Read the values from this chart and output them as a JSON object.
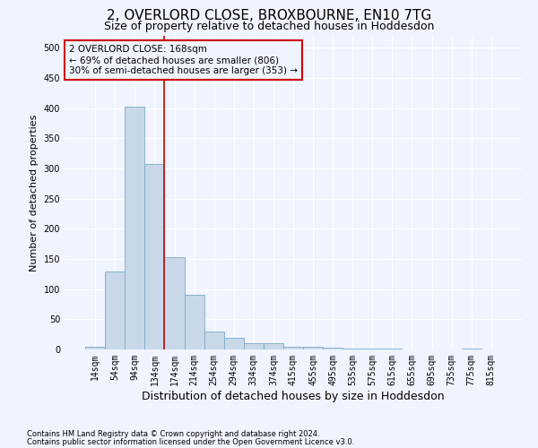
{
  "title": "2, OVERLORD CLOSE, BROXBOURNE, EN10 7TG",
  "subtitle": "Size of property relative to detached houses in Hoddesdon",
  "xlabel": "Distribution of detached houses by size in Hoddesdon",
  "ylabel": "Number of detached properties",
  "footnote1": "Contains HM Land Registry data © Crown copyright and database right 2024.",
  "footnote2": "Contains public sector information licensed under the Open Government Licence v3.0.",
  "categories": [
    "14sqm",
    "54sqm",
    "94sqm",
    "134sqm",
    "174sqm",
    "214sqm",
    "254sqm",
    "294sqm",
    "334sqm",
    "374sqm",
    "415sqm",
    "455sqm",
    "495sqm",
    "535sqm",
    "575sqm",
    "615sqm",
    "655sqm",
    "695sqm",
    "735sqm",
    "775sqm",
    "815sqm"
  ],
  "values": [
    5,
    130,
    403,
    308,
    153,
    91,
    29,
    19,
    10,
    11,
    5,
    5,
    3,
    2,
    1,
    1,
    0,
    0,
    0,
    1,
    0
  ],
  "bar_color": "#c8d8e8",
  "bar_edge_color": "#7aaacb",
  "vline_color": "#cc0000",
  "annotation_box_color": "#cc0000",
  "ylim": [
    0,
    520
  ],
  "yticks": [
    0,
    50,
    100,
    150,
    200,
    250,
    300,
    350,
    400,
    450,
    500
  ],
  "bg_color": "#f0f4ff",
  "grid_color": "#ffffff",
  "title_fontsize": 11,
  "subtitle_fontsize": 9,
  "ylabel_fontsize": 8,
  "xlabel_fontsize": 9,
  "tick_fontsize": 7,
  "annot_fontsize": 7.5,
  "footnote_fontsize": 6,
  "vline_x_index": 3.5
}
